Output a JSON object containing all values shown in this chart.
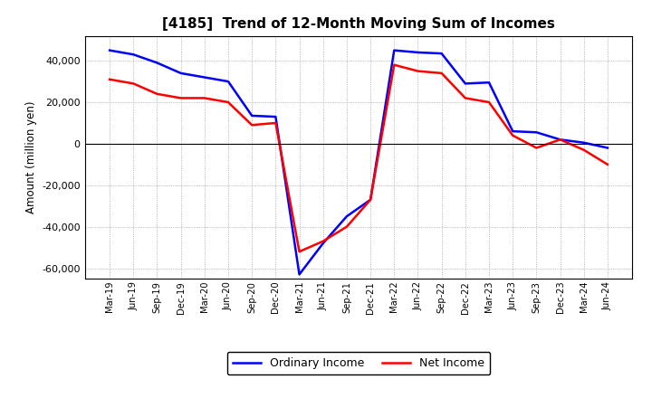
{
  "title": "[4185]  Trend of 12-Month Moving Sum of Incomes",
  "ylabel": "Amount (million yen)",
  "xlabels": [
    "Mar-19",
    "Jun-19",
    "Sep-19",
    "Dec-19",
    "Mar-20",
    "Jun-20",
    "Sep-20",
    "Dec-20",
    "Mar-21",
    "Jun-21",
    "Sep-21",
    "Dec-21",
    "Mar-22",
    "Jun-22",
    "Sep-22",
    "Dec-22",
    "Mar-23",
    "Jun-23",
    "Sep-23",
    "Dec-23",
    "Mar-24",
    "Jun-24"
  ],
  "ordinary_income": [
    45000,
    43000,
    39000,
    34000,
    32000,
    30000,
    13500,
    13000,
    -63000,
    -48000,
    -35000,
    -27000,
    45000,
    44000,
    43500,
    29000,
    29500,
    6000,
    5500,
    2000,
    500,
    -2000
  ],
  "net_income": [
    31000,
    29000,
    24000,
    22000,
    22000,
    20000,
    9000,
    10000,
    -52000,
    -47000,
    -40000,
    -27000,
    38000,
    35000,
    34000,
    22000,
    20000,
    4000,
    -2000,
    2000,
    -3000,
    -10000
  ],
  "ordinary_color": "#0000ff",
  "net_color": "#ff0000",
  "ylim": [
    -65000,
    52000
  ],
  "yticks": [
    -60000,
    -40000,
    -20000,
    0,
    20000,
    40000
  ],
  "background_color": "#ffffff",
  "grid_color": "#888888"
}
